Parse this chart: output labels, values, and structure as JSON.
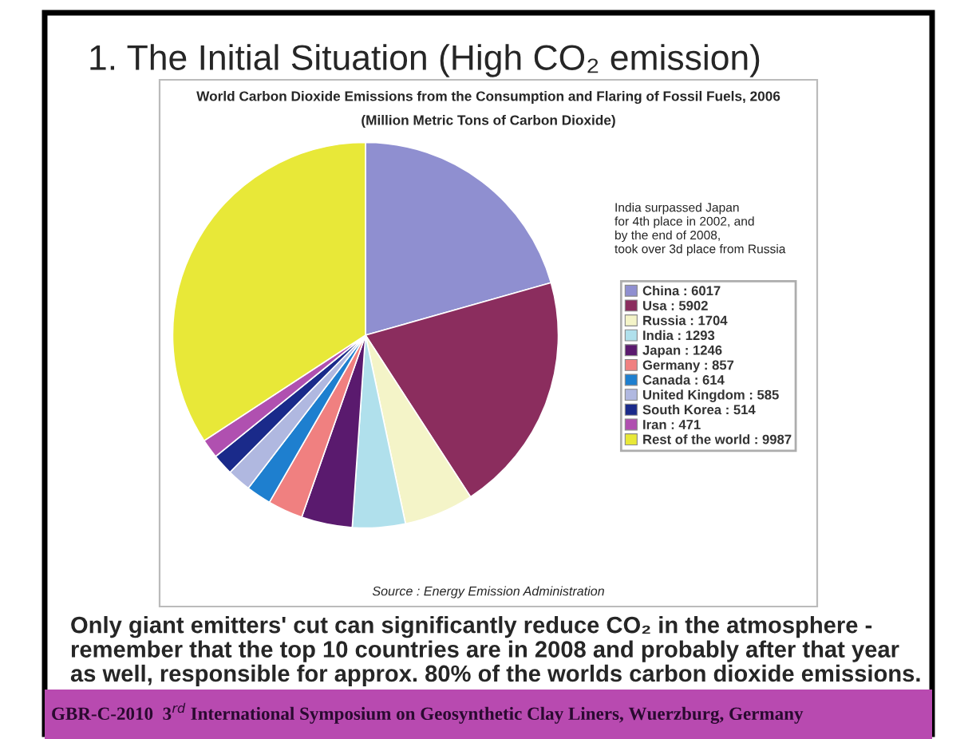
{
  "chart_data": {
    "type": "pie",
    "title": "1. The Initial Situation (High CO₂ emission)",
    "subtitle": "World Carbon Dioxide Emissions from the Consumption and Flaring of Fossil Fuels, 2006",
    "categories": [
      "China : 6017",
      "Usa : 5902",
      "Russia : 1704",
      "India : 1293",
      "Japan : 1246",
      "Germany : 857",
      "Canada : 614",
      "United Kingdom : 585",
      "South Korea : 514",
      "Iran : 471",
      "Rest of the world : 9987"
    ],
    "values": [
      6017,
      5902,
      1704,
      1293,
      1246,
      857,
      614,
      585,
      514,
      471,
      9987
    ],
    "colors": [
      "#8f8fd0",
      "#8b2d5e",
      "#f4f4c8",
      "#b0e0ec",
      "#5a1a6e",
      "#f08080",
      "#1e7fcf",
      "#b0b8e0",
      "#1a2a8a",
      "#b050b0",
      "#e8e838"
    ],
    "legend": "right",
    "annotations": [
      "(Million Metric Tons of Carbon Dioxide)",
      "India surpassed Japan\nfor 4th place in 2002, and\nby the end of 2008,\ntook over 3d place from Russia",
      "Source : Energy Emission Administration",
      "Only giant emitters' cut can significantly reduce CO₂ in the atmosphere -\nremember that the top 10 countries are in 2008 and probably after that year\nas well, responsible for approx. 80% of the worlds carbon dioxide emissions.",
      "GBR-C-2010  3$^{rd}$ International Symposium on Geosynthetic Clay Liners, Wuerzburg, Germany"
    ]
  }
}
